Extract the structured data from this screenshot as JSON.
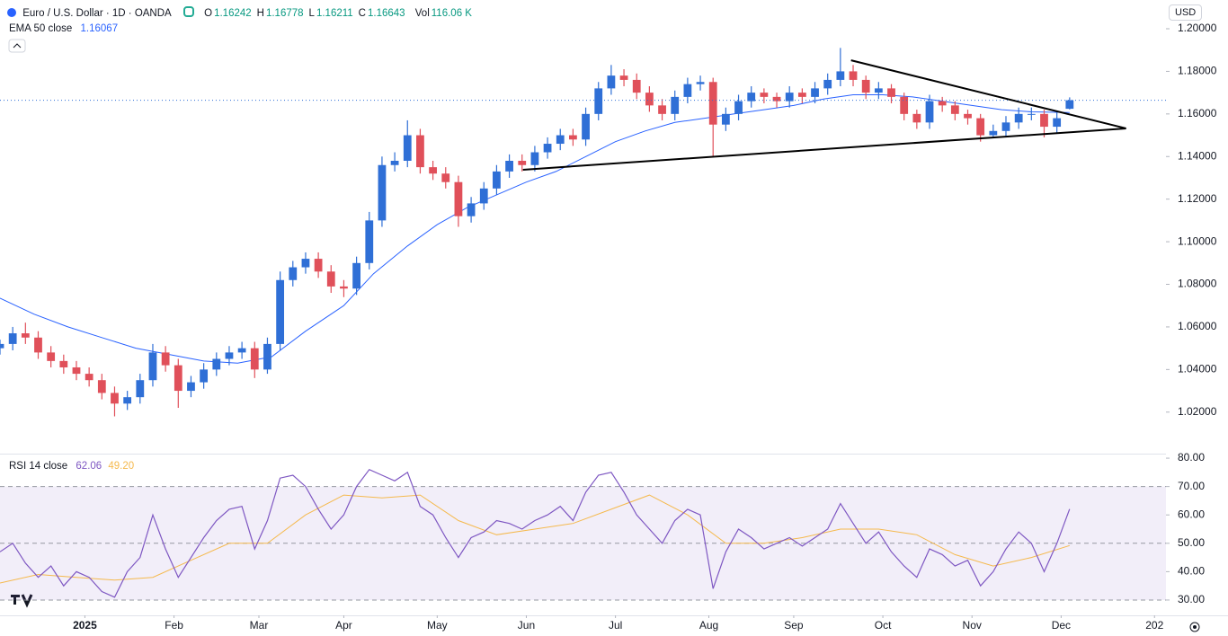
{
  "chart_data": {
    "type": "candlestick",
    "title": "Euro / U.S. Dollar · 1D · OANDA",
    "currency": "USD",
    "ohlc_legend": [
      {
        "label": "O",
        "value": "1.16242"
      },
      {
        "label": "H",
        "value": "1.16778"
      },
      {
        "label": "L",
        "value": "1.16211"
      },
      {
        "label": "C",
        "value": "1.16643"
      }
    ],
    "volume_label": "Vol",
    "volume": "116.06 K",
    "up_color": "#2f6fd6",
    "down_color": "#e0505a",
    "x": [
      -20,
      -17,
      -14,
      -11,
      -8,
      -5,
      -2,
      1,
      4,
      7,
      10,
      13,
      16,
      19,
      22,
      25,
      28,
      31,
      34,
      37,
      40,
      43,
      46,
      49,
      52,
      55,
      58,
      61,
      64,
      67,
      70,
      73,
      76,
      79,
      82,
      85,
      88,
      91,
      94,
      97,
      100,
      103,
      106,
      109,
      112,
      115,
      118,
      121,
      124,
      127,
      130,
      133,
      136,
      139,
      142,
      145,
      148,
      151,
      154,
      157,
      160,
      163,
      166,
      169,
      172,
      175,
      178,
      181,
      184,
      187,
      190,
      193,
      196,
      199,
      202,
      205,
      208,
      211,
      214,
      217,
      220,
      223,
      226,
      229,
      232
    ],
    "open": [
      1.05,
      1.052,
      1.057,
      1.055,
      1.048,
      1.044,
      1.041,
      1.038,
      1.035,
      1.029,
      1.024,
      1.027,
      1.035,
      1.048,
      1.042,
      1.03,
      1.034,
      1.04,
      1.045,
      1.048,
      1.05,
      1.04,
      1.052,
      1.082,
      1.088,
      1.092,
      1.086,
      1.079,
      1.078,
      1.09,
      1.11,
      1.136,
      1.138,
      1.15,
      1.135,
      1.132,
      1.128,
      1.112,
      1.118,
      1.125,
      1.133,
      1.138,
      1.136,
      1.142,
      1.146,
      1.15,
      1.148,
      1.16,
      1.172,
      1.178,
      1.176,
      1.17,
      1.164,
      1.16,
      1.168,
      1.174,
      1.175,
      1.155,
      1.16,
      1.166,
      1.17,
      1.168,
      1.166,
      1.17,
      1.168,
      1.172,
      1.176,
      1.18,
      1.176,
      1.17,
      1.172,
      1.168,
      1.16,
      1.156,
      1.166,
      1.164,
      1.16,
      1.158,
      1.15,
      1.152,
      1.156,
      1.16,
      1.16,
      1.154,
      1.16242
    ],
    "high": [
      1.054,
      1.06,
      1.062,
      1.058,
      1.051,
      1.047,
      1.044,
      1.041,
      1.038,
      1.032,
      1.03,
      1.038,
      1.052,
      1.051,
      1.045,
      1.037,
      1.043,
      1.048,
      1.051,
      1.053,
      1.053,
      1.055,
      1.086,
      1.091,
      1.095,
      1.095,
      1.089,
      1.082,
      1.093,
      1.114,
      1.14,
      1.142,
      1.157,
      1.153,
      1.138,
      1.135,
      1.131,
      1.121,
      1.128,
      1.136,
      1.141,
      1.141,
      1.145,
      1.149,
      1.153,
      1.153,
      1.163,
      1.175,
      1.183,
      1.181,
      1.179,
      1.173,
      1.167,
      1.171,
      1.177,
      1.178,
      1.177,
      1.163,
      1.169,
      1.173,
      1.172,
      1.17,
      1.173,
      1.172,
      1.175,
      1.179,
      1.191,
      1.183,
      1.178,
      1.175,
      1.174,
      1.17,
      1.162,
      1.169,
      1.168,
      1.166,
      1.162,
      1.16,
      1.155,
      1.159,
      1.163,
      1.163,
      1.162,
      1.161,
      1.16778
    ],
    "low": [
      1.047,
      1.049,
      1.052,
      1.045,
      1.041,
      1.038,
      1.035,
      1.032,
      1.026,
      1.018,
      1.021,
      1.024,
      1.032,
      1.039,
      1.022,
      1.027,
      1.031,
      1.037,
      1.042,
      1.045,
      1.036,
      1.038,
      1.049,
      1.079,
      1.085,
      1.083,
      1.076,
      1.074,
      1.075,
      1.087,
      1.107,
      1.133,
      1.135,
      1.132,
      1.129,
      1.125,
      1.107,
      1.109,
      1.115,
      1.122,
      1.13,
      1.133,
      1.133,
      1.139,
      1.143,
      1.145,
      1.145,
      1.157,
      1.169,
      1.173,
      1.167,
      1.161,
      1.157,
      1.157,
      1.165,
      1.171,
      1.14,
      1.152,
      1.157,
      1.163,
      1.165,
      1.163,
      1.163,
      1.165,
      1.165,
      1.169,
      1.173,
      1.173,
      1.167,
      1.167,
      1.165,
      1.157,
      1.153,
      1.153,
      1.161,
      1.157,
      1.155,
      1.147,
      1.149,
      1.149,
      1.153,
      1.157,
      1.149,
      1.151,
      1.16211
    ],
    "close": [
      1.052,
      1.057,
      1.055,
      1.048,
      1.044,
      1.041,
      1.038,
      1.035,
      1.029,
      1.024,
      1.027,
      1.035,
      1.048,
      1.042,
      1.03,
      1.034,
      1.04,
      1.045,
      1.048,
      1.05,
      1.04,
      1.052,
      1.082,
      1.088,
      1.092,
      1.086,
      1.079,
      1.078,
      1.09,
      1.11,
      1.136,
      1.138,
      1.15,
      1.135,
      1.132,
      1.128,
      1.112,
      1.118,
      1.125,
      1.133,
      1.138,
      1.136,
      1.142,
      1.146,
      1.15,
      1.148,
      1.16,
      1.172,
      1.178,
      1.176,
      1.17,
      1.164,
      1.16,
      1.168,
      1.174,
      1.175,
      1.155,
      1.16,
      1.166,
      1.17,
      1.168,
      1.166,
      1.17,
      1.168,
      1.172,
      1.176,
      1.18,
      1.176,
      1.17,
      1.172,
      1.168,
      1.16,
      1.156,
      1.166,
      1.164,
      1.16,
      1.158,
      1.15,
      1.152,
      1.156,
      1.16,
      1.16,
      1.154,
      1.158,
      1.16643
    ],
    "xlim": [
      -20,
      254.7
    ],
    "xticks": [
      {
        "value": 0,
        "label": "2025"
      },
      {
        "value": 21,
        "label": "Feb"
      },
      {
        "value": 41,
        "label": "Mar"
      },
      {
        "value": 61,
        "label": "Apr"
      },
      {
        "value": 83,
        "label": "May"
      },
      {
        "value": 104,
        "label": "Jun"
      },
      {
        "value": 125,
        "label": "Jul"
      },
      {
        "value": 147,
        "label": "Aug"
      },
      {
        "value": 167,
        "label": "Sep"
      },
      {
        "value": 188,
        "label": "Oct"
      },
      {
        "value": 209,
        "label": "Nov"
      },
      {
        "value": 230,
        "label": "Dec"
      },
      {
        "value": 252,
        "label": "202"
      }
    ],
    "ylim": [
      1.0005,
      1.2135
    ],
    "yticks": [
      {
        "value": 1.02,
        "label": "1.02000"
      },
      {
        "value": 1.04,
        "label": "1.04000"
      },
      {
        "value": 1.06,
        "label": "1.06000"
      },
      {
        "value": 1.08,
        "label": "1.08000"
      },
      {
        "value": 1.1,
        "label": "1.10000"
      },
      {
        "value": 1.12,
        "label": "1.12000"
      },
      {
        "value": 1.14,
        "label": "1.14000"
      },
      {
        "value": 1.16,
        "label": "1.16000"
      },
      {
        "value": 1.18,
        "label": "1.18000"
      },
      {
        "value": 1.2,
        "label": "1.20000"
      }
    ],
    "ema": {
      "name": "EMA 50 close",
      "value_label": "1.16067",
      "color": "#2962ff",
      "x": [
        -20,
        -12,
        -4,
        4,
        12,
        20,
        28,
        36,
        44,
        52,
        61,
        68,
        76,
        83,
        90,
        97,
        104,
        111,
        118,
        125,
        132,
        139,
        146,
        153,
        160,
        167,
        174,
        181,
        188,
        195,
        202,
        209,
        216,
        223,
        232
      ],
      "values": [
        1.0735,
        1.066,
        1.06,
        1.055,
        1.05,
        1.047,
        1.044,
        1.043,
        1.046,
        1.058,
        1.07,
        1.085,
        1.098,
        1.108,
        1.116,
        1.122,
        1.128,
        1.133,
        1.14,
        1.147,
        1.152,
        1.156,
        1.158,
        1.16,
        1.162,
        1.164,
        1.167,
        1.169,
        1.169,
        1.168,
        1.166,
        1.164,
        1.162,
        1.161,
        1.1607
      ]
    },
    "trendlines": [
      {
        "x": [
          180.5,
          245.3
        ],
        "y": [
          1.1852,
          1.1532
        ]
      },
      {
        "x": [
          103.2,
          245.3
        ],
        "y": [
          1.1338,
          1.1532
        ]
      }
    ],
    "rsi": {
      "name": "RSI 14 close",
      "value_label": "62.06",
      "ma_label": "49.20",
      "color": "#7e57c2",
      "ma_color": "#f5b94d",
      "values": [
        47,
        50,
        43,
        38,
        42,
        35,
        40,
        38,
        33,
        31,
        40,
        45,
        60,
        48,
        38,
        45,
        52,
        58,
        62,
        63,
        48,
        58,
        73,
        74,
        70,
        62,
        55,
        60,
        70,
        76,
        74,
        72,
        75,
        63,
        60,
        52,
        45,
        52,
        54,
        58,
        57,
        55,
        58,
        60,
        63,
        58,
        68,
        74,
        75,
        68,
        60,
        55,
        50,
        58,
        62,
        60,
        34,
        47,
        55,
        52,
        48,
        50,
        52,
        49,
        52,
        55,
        64,
        57,
        50,
        54,
        47,
        42,
        38,
        48,
        46,
        42,
        44,
        35,
        40,
        48,
        54,
        50,
        40,
        50,
        62.06
      ],
      "ma_x": [
        -20,
        -11,
        -2,
        7,
        16,
        25,
        34,
        43,
        52,
        61,
        70,
        79,
        88,
        97,
        106,
        115,
        124,
        133,
        142,
        151,
        160,
        169,
        178,
        187,
        196,
        205,
        214,
        223,
        232
      ],
      "ma_values": [
        36,
        39,
        38,
        37,
        38,
        44,
        50,
        50,
        60,
        67,
        66,
        67,
        58,
        53,
        55,
        57,
        62,
        67,
        60,
        50,
        50,
        52,
        55,
        55,
        53,
        46,
        42,
        45,
        49.2
      ],
      "levels": [
        70,
        50,
        30
      ],
      "ylim": [
        24.6,
        81.6
      ],
      "yticks": [
        {
          "value": 30,
          "label": "30.00"
        },
        {
          "value": 40,
          "label": "40.00"
        },
        {
          "value": 50,
          "label": "50.00"
        },
        {
          "value": 60,
          "label": "60.00"
        },
        {
          "value": 70,
          "label": "70.00"
        },
        {
          "value": 80,
          "label": "80.00"
        }
      ]
    }
  }
}
